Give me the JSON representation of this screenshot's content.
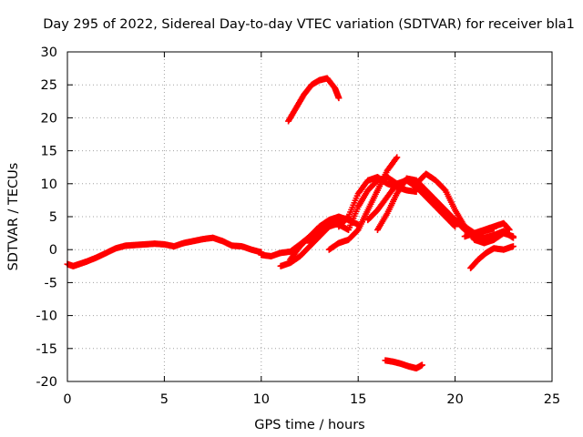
{
  "chart_data": {
    "type": "scatter",
    "title": "Day 295 of 2022, Sidereal Day-to-day VTEC variation (SDTVAR) for receiver bla1",
    "xlabel": "GPS time / hours",
    "ylabel": "SDTVAR / TECUs",
    "xlim": [
      0,
      25
    ],
    "ylim": [
      -20,
      30
    ],
    "xticks": [
      0,
      5,
      10,
      15,
      20,
      25
    ],
    "yticks": [
      -20,
      -15,
      -10,
      -5,
      0,
      5,
      10,
      15,
      20,
      25,
      30
    ],
    "grid": true,
    "marker": "+",
    "color": "#ff0000",
    "series": [
      {
        "name": "arc-1",
        "x": [
          0.0,
          0.3,
          0.6,
          1.0,
          1.5,
          2.0,
          2.5,
          3.0,
          3.5,
          4.0,
          4.5,
          5.0,
          5.5,
          6.0,
          6.5,
          7.0,
          7.5,
          8.0,
          8.5,
          9.0,
          9.5,
          10.0
        ],
        "y": [
          -2.2,
          -2.5,
          -2.2,
          -1.8,
          -1.2,
          -0.5,
          0.2,
          0.6,
          0.7,
          0.8,
          0.9,
          0.8,
          0.5,
          1.0,
          1.3,
          1.6,
          1.8,
          1.3,
          0.6,
          0.5,
          0.0,
          -0.4
        ]
      },
      {
        "name": "arc-2",
        "x": [
          10.0,
          10.5,
          11.0,
          11.5,
          12.0,
          12.5,
          13.0,
          13.5,
          14.0
        ],
        "y": [
          -0.8,
          -1.0,
          -0.5,
          -0.3,
          0.8,
          2.0,
          3.0,
          3.5,
          4.0
        ]
      },
      {
        "name": "arc-3",
        "x": [
          11.0,
          11.5,
          12.0,
          12.5,
          13.0,
          13.5,
          14.0,
          14.5
        ],
        "y": [
          -2.5,
          -2.0,
          -1.0,
          0.5,
          2.0,
          3.5,
          4.5,
          4.8
        ]
      },
      {
        "name": "arc-4",
        "x": [
          11.5,
          12.0,
          12.5,
          13.0,
          13.5,
          14.0,
          14.5,
          15.0
        ],
        "y": [
          -1.5,
          0.5,
          2.0,
          3.5,
          4.5,
          5.0,
          4.5,
          3.8
        ]
      },
      {
        "name": "arc-5",
        "x": [
          12.5,
          13.0,
          13.5,
          14.0,
          14.5,
          15.0,
          15.5,
          16.0,
          16.5,
          17.0
        ],
        "y": [
          1.0,
          2.5,
          4.0,
          3.8,
          3.0,
          6.5,
          9.0,
          10.5,
          11.0,
          10.0
        ]
      },
      {
        "name": "arc-6",
        "x": [
          13.5,
          14.0,
          14.5,
          15.0,
          15.5,
          16.0,
          16.5,
          17.0
        ],
        "y": [
          0.0,
          1.0,
          1.5,
          3.0,
          6.0,
          9.0,
          12.0,
          14.0
        ]
      },
      {
        "name": "arc-7",
        "x": [
          14.0,
          14.5,
          15.0,
          15.5,
          16.0,
          16.5,
          17.0,
          17.5,
          18.0
        ],
        "y": [
          3.5,
          5.0,
          8.5,
          10.5,
          11.0,
          10.0,
          9.5,
          9.0,
          8.8
        ]
      },
      {
        "name": "arc-8",
        "x": [
          15.5,
          16.0,
          16.5,
          17.0,
          17.5,
          18.0,
          18.5,
          19.0,
          19.5,
          20.0
        ],
        "y": [
          4.5,
          6.0,
          8.0,
          10.0,
          10.5,
          9.5,
          8.0,
          6.5,
          5.0,
          3.5
        ]
      },
      {
        "name": "arc-9",
        "x": [
          16.0,
          16.5,
          17.0,
          17.5,
          18.0,
          18.5,
          19.0,
          19.5,
          20.0,
          20.5,
          21.0,
          21.5,
          22.0,
          22.5,
          23.0
        ],
        "y": [
          3.0,
          5.5,
          8.5,
          10.8,
          10.5,
          9.0,
          7.5,
          6.0,
          4.5,
          3.0,
          2.0,
          1.8,
          2.2,
          2.8,
          1.8
        ]
      },
      {
        "name": "arc-10",
        "x": [
          18.0,
          18.5,
          19.0,
          19.5,
          20.0,
          20.5,
          21.0,
          21.5,
          22.0
        ],
        "y": [
          10.0,
          11.5,
          10.5,
          9.0,
          6.0,
          3.5,
          2.5,
          2.8,
          3.2
        ]
      },
      {
        "name": "arc-11",
        "x": [
          20.0,
          20.5,
          21.0,
          21.5,
          22.0,
          22.5,
          23.0
        ],
        "y": [
          4.5,
          3.5,
          1.5,
          1.0,
          1.5,
          2.5,
          2.0
        ]
      },
      {
        "name": "arc-12",
        "x": [
          20.8,
          21.2,
          21.6,
          22.0,
          22.5,
          23.0
        ],
        "y": [
          -2.8,
          -1.5,
          -0.5,
          0.2,
          0.0,
          0.5
        ]
      },
      {
        "name": "arc-13",
        "x": [
          20.5,
          21.0,
          21.5,
          22.0,
          22.5,
          22.8
        ],
        "y": [
          2.0,
          2.5,
          3.0,
          3.5,
          4.0,
          3.0
        ]
      },
      {
        "name": "arc-14",
        "x": [
          11.4,
          11.8,
          12.2,
          12.6,
          13.0,
          13.4,
          13.8,
          14.0
        ],
        "y": [
          19.5,
          21.5,
          23.5,
          25.0,
          25.7,
          26.0,
          24.5,
          23.0
        ]
      },
      {
        "name": "arc-15",
        "x": [
          16.4,
          16.8,
          17.2,
          17.6,
          18.0,
          18.3
        ],
        "y": [
          -16.8,
          -17.0,
          -17.3,
          -17.7,
          -18.0,
          -17.5
        ]
      }
    ]
  }
}
